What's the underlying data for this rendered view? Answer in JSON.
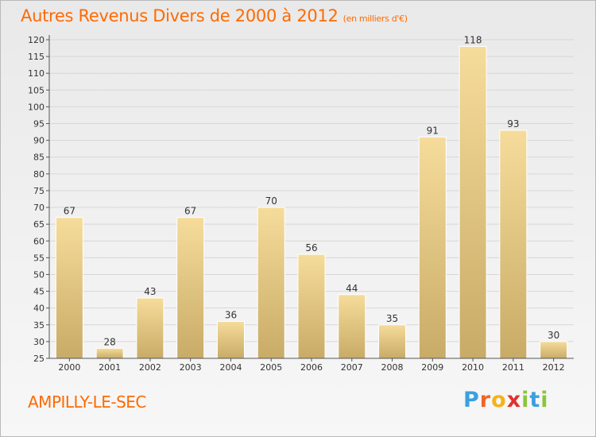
{
  "header": {
    "title": "Autres Revenus Divers de 2000 à 2012",
    "unit": "(en milliers d'€)"
  },
  "commune": "AMPILLY-LE-SEC",
  "brand": {
    "name": "Proxiti",
    "letter_colors": [
      "#3aa0e0",
      "#f26522",
      "#f6b21a",
      "#e0312e",
      "#8bc53f",
      "#3aa0e0",
      "#8bc53f"
    ]
  },
  "colors": {
    "title": "#ff6a00",
    "bar_top": "#f6dc9b",
    "bar_bottom": "#c8ab66",
    "bar_edge": "#ffffff",
    "grid": "#d7d7d7",
    "axis": "#555555"
  },
  "chart_data": {
    "type": "bar",
    "title": "Autres Revenus Divers de 2000 à 2012",
    "subtitle": "(en milliers d'€)",
    "xlabel": "",
    "ylabel": "",
    "categories": [
      "2000",
      "2001",
      "2002",
      "2003",
      "2004",
      "2005",
      "2006",
      "2007",
      "2008",
      "2009",
      "2010",
      "2011",
      "2012"
    ],
    "values": [
      67,
      28,
      43,
      67,
      36,
      70,
      56,
      44,
      35,
      91,
      118,
      93,
      30
    ],
    "ylim": [
      25,
      120
    ],
    "yticks": [
      25,
      30,
      35,
      40,
      45,
      50,
      55,
      60,
      65,
      70,
      75,
      80,
      85,
      90,
      95,
      100,
      105,
      110,
      115,
      120
    ],
    "grid": true,
    "data_labels": true
  }
}
